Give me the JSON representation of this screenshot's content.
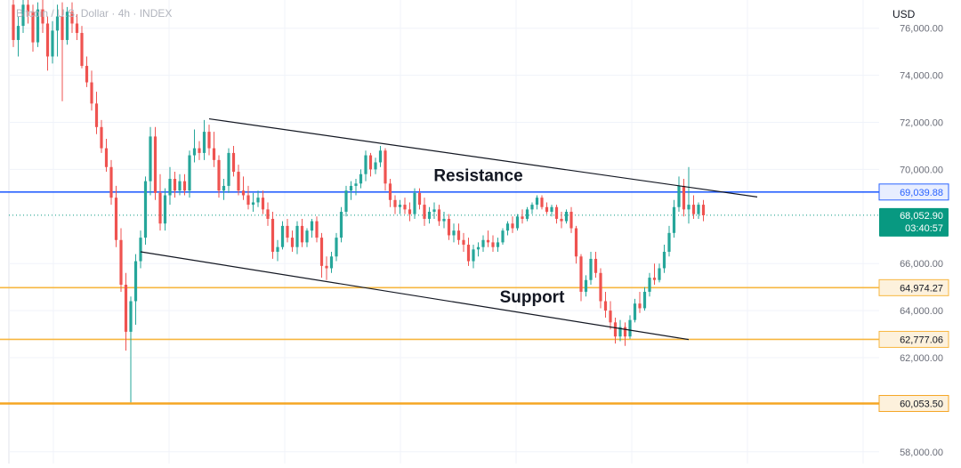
{
  "header": {
    "symbol": "Bitcoin / U.S. Dollar · 4h · INDEX",
    "currency": "USD"
  },
  "colors": {
    "up": "#26a69a",
    "down": "#ef5350",
    "grid": "#f0f3fa",
    "resistance_line": "#2962ff",
    "support_line": "#f7b740",
    "trend_line": "#131722",
    "price_label": "#089981",
    "axis_text": "#6a6d78"
  },
  "chart_data": {
    "type": "candlestick",
    "title": "",
    "xlabel": "",
    "ylabel": "",
    "ylim": [
      57500,
      77200
    ],
    "y_ticks": [
      {
        "value": 76000,
        "label": "76,000.00"
      },
      {
        "value": 74000,
        "label": "74,000.00"
      },
      {
        "value": 72000,
        "label": "72,000.00"
      },
      {
        "value": 70000,
        "label": "70,000.00"
      },
      {
        "value": 66000,
        "label": "66,000.00"
      },
      {
        "value": 64000,
        "label": "64,000.00"
      },
      {
        "value": 62000,
        "label": "62,000.00"
      },
      {
        "value": 58000,
        "label": "58,000.00"
      }
    ],
    "horizontal_levels": [
      {
        "value": 69039.88,
        "label": "69,039.88",
        "color": "#2962ff"
      },
      {
        "value": 64974.27,
        "label": "64,974.27",
        "color": "#f7b740"
      },
      {
        "value": 62777.06,
        "label": "62,777.06",
        "color": "#f7b740"
      },
      {
        "value": 60053.5,
        "label": "60,053.50",
        "color": "#f5a623"
      }
    ],
    "current_price": {
      "value": 68052.9,
      "label": "68,052.90",
      "countdown": "03:40:57"
    },
    "trendlines": [
      {
        "name": "resistance-trendline",
        "from": [
          40,
          72150
        ],
        "to": [
          152,
          68830
        ]
      },
      {
        "name": "support-trendline",
        "from": [
          26,
          66500
        ],
        "to": [
          138,
          62770
        ]
      }
    ],
    "annotations": [
      {
        "text": "Resistance",
        "x": 95,
        "value": 69500
      },
      {
        "text": "Support",
        "x": 106,
        "value": 64350
      }
    ],
    "candles": [
      [
        77000,
        77200,
        75200,
        75500
      ],
      [
        75500,
        76500,
        74800,
        76100
      ],
      [
        76100,
        77300,
        75800,
        77000
      ],
      [
        77000,
        77300,
        76200,
        76700
      ],
      [
        76700,
        77000,
        75000,
        75400
      ],
      [
        75400,
        77100,
        75200,
        76800
      ],
      [
        76800,
        77200,
        75800,
        76200
      ],
      [
        76200,
        76500,
        74200,
        74800
      ],
      [
        74800,
        76300,
        74500,
        75900
      ],
      [
        75900,
        77000,
        74800,
        76500
      ],
      [
        76500,
        77100,
        72900,
        75500
      ],
      [
        75500,
        76900,
        75300,
        76700
      ],
      [
        76700,
        77100,
        75800,
        76200
      ],
      [
        76200,
        76600,
        75500,
        75800
      ],
      [
        75800,
        76100,
        74300,
        74400
      ],
      [
        74400,
        74800,
        73500,
        73700
      ],
      [
        73700,
        74200,
        72500,
        72800
      ],
      [
        72800,
        73300,
        71500,
        71800
      ],
      [
        71800,
        72100,
        70700,
        70900
      ],
      [
        70900,
        71300,
        69900,
        70100
      ],
      [
        70100,
        70400,
        68500,
        68800
      ],
      [
        68800,
        69300,
        66700,
        67000
      ],
      [
        67000,
        67500,
        64800,
        65100
      ],
      [
        65100,
        65600,
        62300,
        63100
      ],
      [
        63100,
        64600,
        60100,
        64400
      ],
      [
        64400,
        66400,
        63400,
        66100
      ],
      [
        66100,
        67400,
        65800,
        67100
      ],
      [
        67100,
        69700,
        66800,
        69500
      ],
      [
        69500,
        71800,
        68900,
        71400
      ],
      [
        71400,
        71800,
        68700,
        69000
      ],
      [
        69000,
        69800,
        67400,
        67700
      ],
      [
        67700,
        69200,
        67400,
        68900
      ],
      [
        68900,
        70100,
        68500,
        69600
      ],
      [
        69600,
        69900,
        68800,
        69100
      ],
      [
        69100,
        69800,
        68900,
        69500
      ],
      [
        69500,
        69800,
        68900,
        69100
      ],
      [
        69100,
        70800,
        68800,
        70600
      ],
      [
        70600,
        71700,
        70300,
        70900
      ],
      [
        70900,
        71200,
        70400,
        70700
      ],
      [
        70700,
        72100,
        70400,
        71600
      ],
      [
        71600,
        71900,
        70600,
        70900
      ],
      [
        70900,
        71600,
        70100,
        70400
      ],
      [
        70400,
        70600,
        68800,
        69100
      ],
      [
        69100,
        69600,
        68700,
        69300
      ],
      [
        69300,
        70900,
        69000,
        70700
      ],
      [
        70700,
        71000,
        69700,
        69900
      ],
      [
        69900,
        70200,
        68900,
        69100
      ],
      [
        69100,
        69700,
        68700,
        68900
      ],
      [
        68900,
        69300,
        68300,
        68500
      ],
      [
        68500,
        69000,
        68200,
        68600
      ],
      [
        68600,
        69100,
        68400,
        68800
      ],
      [
        68800,
        69100,
        68100,
        68300
      ],
      [
        68300,
        68600,
        67600,
        67900
      ],
      [
        67900,
        68200,
        66200,
        66500
      ],
      [
        66500,
        67000,
        66100,
        66700
      ],
      [
        66700,
        67800,
        66600,
        67600
      ],
      [
        67600,
        67900,
        66900,
        67100
      ],
      [
        67100,
        67400,
        66500,
        66700
      ],
      [
        66700,
        67800,
        66400,
        67600
      ],
      [
        67600,
        67900,
        66700,
        66900
      ],
      [
        66900,
        67500,
        66700,
        67400
      ],
      [
        67400,
        67900,
        67100,
        67800
      ],
      [
        67800,
        68000,
        66900,
        67100
      ],
      [
        67100,
        67300,
        65400,
        65900
      ],
      [
        65900,
        66300,
        65300,
        65800
      ],
      [
        65800,
        66500,
        65600,
        66300
      ],
      [
        66300,
        67300,
        66100,
        67100
      ],
      [
        67100,
        68400,
        66900,
        68200
      ],
      [
        68200,
        69300,
        68000,
        69100
      ],
      [
        69100,
        69500,
        68700,
        69300
      ],
      [
        69300,
        69600,
        68900,
        69400
      ],
      [
        69400,
        70000,
        69200,
        69800
      ],
      [
        69800,
        70800,
        69500,
        70600
      ],
      [
        70600,
        70700,
        69700,
        70000
      ],
      [
        70000,
        70500,
        69800,
        70300
      ],
      [
        70300,
        71000,
        70100,
        70800
      ],
      [
        70800,
        70900,
        69100,
        69400
      ],
      [
        69400,
        69600,
        68400,
        68700
      ],
      [
        68700,
        68900,
        68100,
        68400
      ],
      [
        68400,
        68700,
        68100,
        68500
      ],
      [
        68500,
        68800,
        68100,
        68300
      ],
      [
        68300,
        68600,
        67800,
        68100
      ],
      [
        68100,
        69200,
        67900,
        69000
      ],
      [
        69000,
        69200,
        68300,
        68500
      ],
      [
        68500,
        68800,
        67600,
        67900
      ],
      [
        67900,
        68400,
        67700,
        68200
      ],
      [
        68200,
        68600,
        67900,
        68300
      ],
      [
        68300,
        68500,
        67600,
        67800
      ],
      [
        67800,
        68200,
        67500,
        67900
      ],
      [
        67900,
        68100,
        67000,
        67200
      ],
      [
        67200,
        67700,
        66900,
        67400
      ],
      [
        67400,
        67700,
        66800,
        67000
      ],
      [
        67000,
        67300,
        66500,
        66800
      ],
      [
        66800,
        67100,
        65900,
        66100
      ],
      [
        66100,
        66800,
        65800,
        66600
      ],
      [
        66600,
        66900,
        66300,
        66700
      ],
      [
        66700,
        67200,
        66500,
        67000
      ],
      [
        67000,
        67400,
        66700,
        66900
      ],
      [
        66900,
        67200,
        66500,
        66700
      ],
      [
        66700,
        67100,
        66500,
        66900
      ],
      [
        66900,
        67500,
        66800,
        67400
      ],
      [
        67400,
        67800,
        67200,
        67700
      ],
      [
        67700,
        68000,
        67300,
        67500
      ],
      [
        67500,
        68100,
        67400,
        68000
      ],
      [
        68000,
        68300,
        67700,
        67900
      ],
      [
        67900,
        68400,
        67800,
        68300
      ],
      [
        68300,
        68600,
        68100,
        68500
      ],
      [
        68500,
        68900,
        68300,
        68800
      ],
      [
        68800,
        68900,
        68300,
        68400
      ],
      [
        68400,
        68600,
        68100,
        68200
      ],
      [
        68200,
        68500,
        68000,
        68400
      ],
      [
        68400,
        68500,
        67700,
        67900
      ],
      [
        67900,
        68200,
        67500,
        67800
      ],
      [
        67800,
        68300,
        67700,
        68200
      ],
      [
        68200,
        68400,
        67300,
        67500
      ],
      [
        67500,
        67600,
        66000,
        66300
      ],
      [
        66300,
        66400,
        64400,
        64800
      ],
      [
        64800,
        65500,
        64600,
        65300
      ],
      [
        65300,
        66500,
        65100,
        66200
      ],
      [
        66200,
        66500,
        65400,
        65600
      ],
      [
        65600,
        65800,
        64100,
        64400
      ],
      [
        64400,
        64800,
        63700,
        64000
      ],
      [
        64000,
        64400,
        63200,
        63500
      ],
      [
        63500,
        63700,
        62600,
        62900
      ],
      [
        62900,
        63600,
        62700,
        63300
      ],
      [
        63300,
        63500,
        62500,
        62900
      ],
      [
        62900,
        63800,
        62800,
        63600
      ],
      [
        63600,
        64500,
        63500,
        64300
      ],
      [
        64300,
        64800,
        63900,
        64100
      ],
      [
        64100,
        65000,
        64000,
        64800
      ],
      [
        64800,
        65600,
        64600,
        65400
      ],
      [
        65400,
        66000,
        65100,
        65300
      ],
      [
        65300,
        66000,
        65200,
        65800
      ],
      [
        65800,
        66800,
        65600,
        66500
      ],
      [
        66500,
        67600,
        66300,
        67300
      ],
      [
        67300,
        68700,
        67100,
        68400
      ],
      [
        68400,
        69700,
        68200,
        69300
      ],
      [
        69300,
        69600,
        68000,
        68300
      ],
      [
        68300,
        70100,
        67700,
        68500
      ],
      [
        68500,
        68900,
        67900,
        68100
      ],
      [
        68100,
        68600,
        67900,
        68500
      ],
      [
        68500,
        68700,
        67800,
        68050
      ]
    ]
  }
}
